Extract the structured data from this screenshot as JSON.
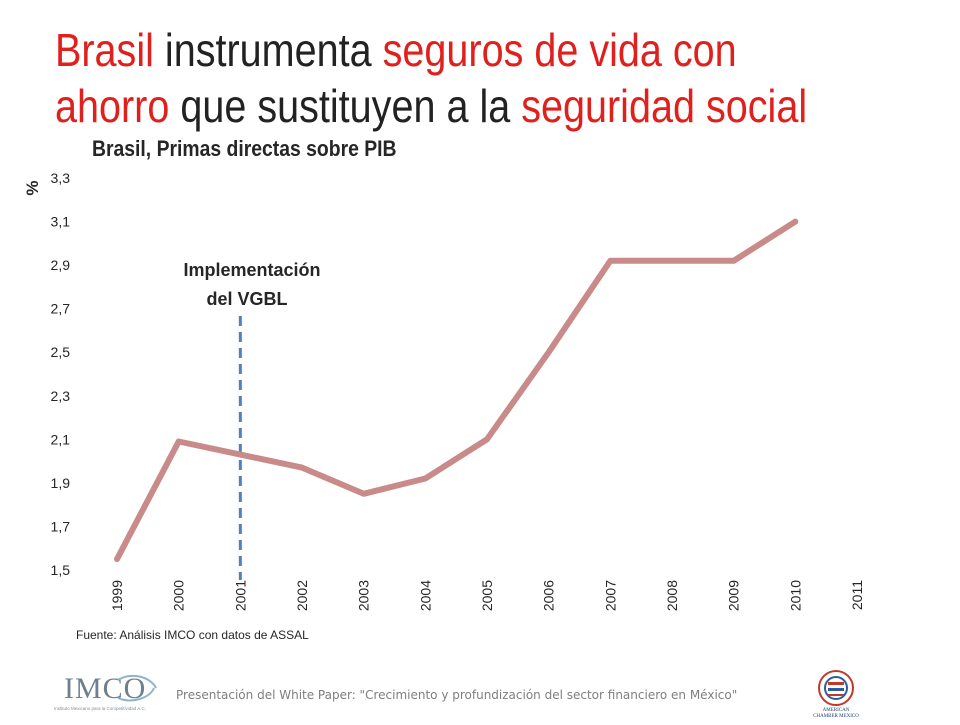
{
  "slide": {
    "title_parts": [
      {
        "text": "Brasil",
        "red": true
      },
      {
        "text": " instrumenta ",
        "red": false
      },
      {
        "text": "seguros de vida con ahorro",
        "red": true
      },
      {
        "text": " que sustituyen a la ",
        "red": false
      },
      {
        "text": "seguridad social",
        "red": true
      }
    ],
    "source": "Fuente: Análisis IMCO con datos de ASSAL",
    "footer": "Presentación del White Paper: \"Crecimiento y profundización del sector financiero en México\"",
    "logo_left": "IMCO",
    "logo_left_sub": "Instituto Mexicano para la Competitividad A.C.",
    "logo_right_sub": "AMERICAN CHAMBER MEXICO"
  },
  "colors": {
    "title_red": "#e0201d",
    "line": "#c98a8a",
    "marker_line": "#4f81bd",
    "text": "#262626"
  },
  "chart_data": {
    "type": "line",
    "title": "Brasil, Primas directas sobre PIB",
    "ylabel": "%",
    "xlabel": "",
    "categories": [
      "1999",
      "2000",
      "2001",
      "2002",
      "2003",
      "2004",
      "2005",
      "2006",
      "2007",
      "2008",
      "2009",
      "2010",
      "2011"
    ],
    "yticks": [
      "1,5",
      "1,7",
      "1,9",
      "2,1",
      "2,3",
      "2,5",
      "2,7",
      "2,9",
      "3,1",
      "3,3"
    ],
    "ylim": [
      1.5,
      3.3
    ],
    "series": [
      {
        "values": [
          1.55,
          2.09,
          2.03,
          1.97,
          1.85,
          1.92,
          2.1,
          2.5,
          2.92,
          2.92,
          2.92,
          3.1,
          null
        ]
      }
    ],
    "annotation": {
      "text_line1": "Implementación",
      "text_line2": "del VGBL",
      "x_position": "2001"
    },
    "grid": false,
    "legend": "none"
  }
}
